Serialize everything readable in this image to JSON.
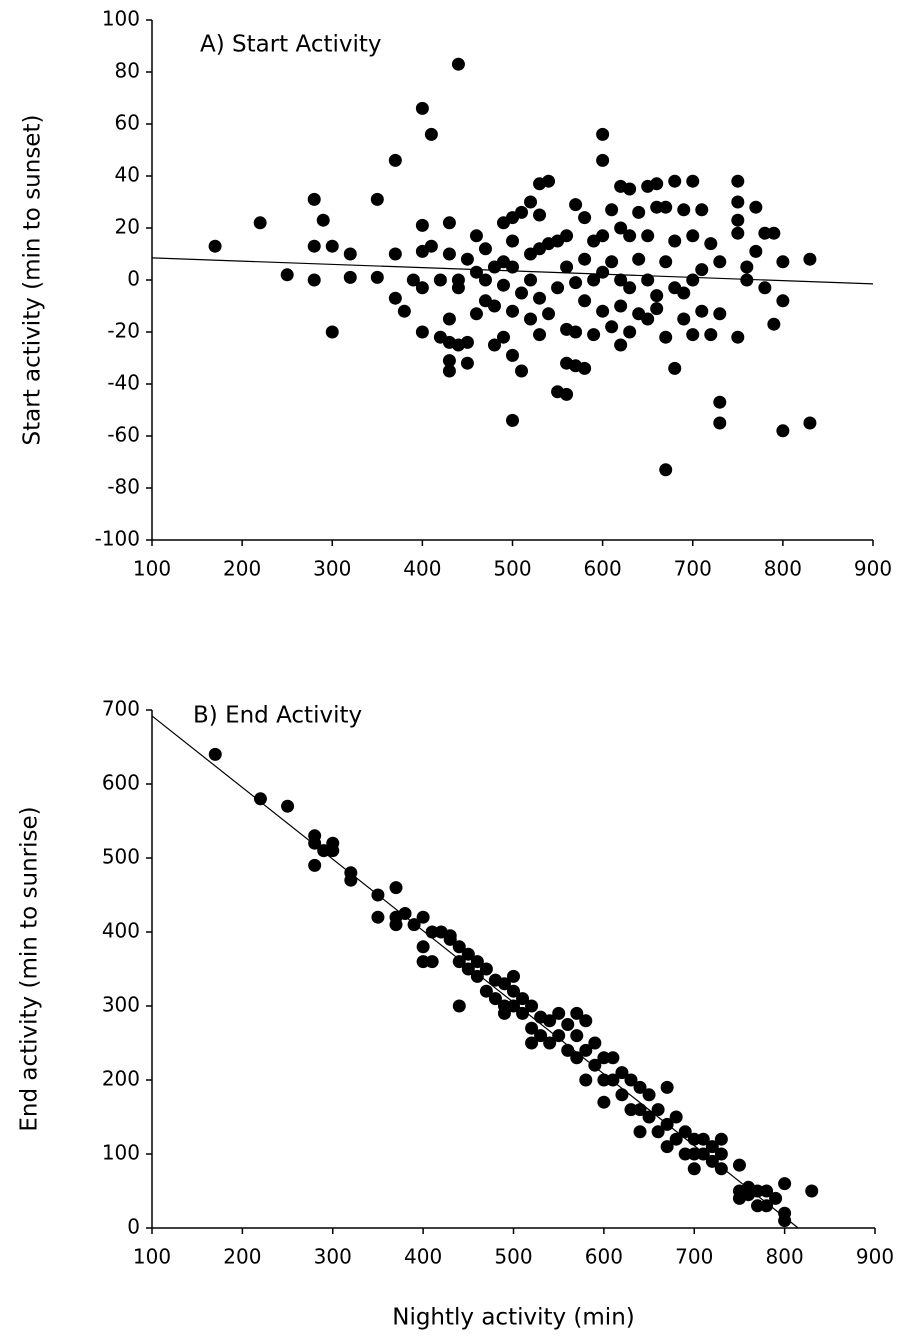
{
  "chart_data": [
    {
      "type": "scatter",
      "title": "A) Start Activity",
      "y_label": "Start activity (min to sunset)",
      "color": "#000000",
      "x": [
        170,
        220,
        250,
        280,
        280,
        280,
        290,
        300,
        300,
        320,
        320,
        350,
        350,
        370,
        370,
        370,
        380,
        390,
        400,
        400,
        400,
        400,
        400,
        410,
        410,
        420,
        420,
        430,
        430,
        430,
        430,
        430,
        430,
        440,
        440,
        440,
        440,
        450,
        450,
        450,
        460,
        460,
        460,
        470,
        470,
        470,
        480,
        480,
        480,
        490,
        490,
        490,
        490,
        500,
        500,
        500,
        500,
        500,
        500,
        510,
        510,
        510,
        520,
        520,
        520,
        520,
        530,
        530,
        530,
        530,
        530,
        540,
        540,
        540,
        550,
        550,
        550,
        560,
        560,
        560,
        560,
        560,
        570,
        570,
        570,
        570,
        580,
        580,
        580,
        580,
        590,
        590,
        590,
        600,
        600,
        600,
        600,
        600,
        610,
        610,
        610,
        620,
        620,
        620,
        620,
        620,
        630,
        630,
        630,
        630,
        640,
        640,
        640,
        650,
        650,
        650,
        650,
        660,
        660,
        660,
        660,
        670,
        670,
        670,
        670,
        680,
        680,
        680,
        680,
        690,
        690,
        690,
        700,
        700,
        700,
        700,
        710,
        710,
        710,
        720,
        720,
        730,
        730,
        730,
        730,
        750,
        750,
        750,
        750,
        750,
        760,
        760,
        770,
        770,
        780,
        780,
        790,
        790,
        800,
        800,
        800,
        830,
        830
      ],
      "values": [
        13,
        22,
        2,
        31,
        13,
        0,
        23,
        13,
        -20,
        10,
        1,
        31,
        1,
        46,
        10,
        -7,
        -12,
        0,
        66,
        21,
        11,
        -3,
        -20,
        56,
        13,
        0,
        -22,
        22,
        10,
        -15,
        -24,
        -31,
        -35,
        83,
        0,
        -3,
        -25,
        8,
        -24,
        -32,
        17,
        3,
        -13,
        12,
        0,
        -8,
        5,
        -10,
        -25,
        22,
        7,
        -2,
        -22,
        24,
        15,
        5,
        -12,
        -29,
        -54,
        26,
        -5,
        -35,
        30,
        10,
        0,
        -15,
        37,
        25,
        12,
        -7,
        -21,
        38,
        14,
        -13,
        15,
        -3,
        -43,
        17,
        5,
        -19,
        -32,
        -44,
        29,
        -1,
        -20,
        -33,
        24,
        8,
        -8,
        -34,
        15,
        0,
        -21,
        56,
        46,
        17,
        3,
        -12,
        27,
        7,
        -18,
        36,
        20,
        0,
        -10,
        -25,
        35,
        17,
        -3,
        -20,
        26,
        8,
        -13,
        36,
        17,
        0,
        -15,
        37,
        28,
        -6,
        -11,
        28,
        7,
        -22,
        -73,
        38,
        15,
        -3,
        -34,
        27,
        -5,
        -15,
        38,
        17,
        0,
        -21,
        27,
        4,
        -12,
        14,
        -21,
        7,
        -13,
        -47,
        -55,
        38,
        30,
        23,
        18,
        -22,
        5,
        0,
        28,
        11,
        18,
        -3,
        18,
        -17,
        7,
        -8,
        -58,
        8,
        -55
      ],
      "trendline": {
        "x": [
          100,
          900
        ],
        "values": [
          8.5,
          -1.5
        ]
      },
      "xlim": [
        100,
        900
      ],
      "ylim": [
        -100,
        100
      ],
      "xticks": [
        100,
        200,
        300,
        400,
        500,
        600,
        700,
        800,
        900
      ],
      "yticks": [
        -100,
        -80,
        -60,
        -40,
        -20,
        0,
        20,
        40,
        60,
        80,
        100
      ]
    },
    {
      "type": "scatter",
      "title": "B) End Activity",
      "y_label": "End activity (min to sunrise)",
      "x_label": "Nightly activity (min)",
      "color": "#000000",
      "x": [
        170,
        220,
        250,
        280,
        280,
        280,
        290,
        300,
        300,
        320,
        320,
        350,
        350,
        370,
        370,
        370,
        380,
        390,
        400,
        400,
        400,
        410,
        410,
        420,
        430,
        430,
        440,
        440,
        440,
        450,
        450,
        460,
        460,
        470,
        470,
        480,
        480,
        490,
        490,
        490,
        500,
        500,
        500,
        510,
        510,
        520,
        520,
        520,
        530,
        530,
        540,
        540,
        550,
        550,
        560,
        560,
        570,
        570,
        570,
        580,
        580,
        580,
        590,
        590,
        600,
        600,
        600,
        610,
        610,
        620,
        620,
        630,
        630,
        640,
        640,
        640,
        650,
        650,
        660,
        660,
        670,
        670,
        670,
        680,
        680,
        690,
        690,
        700,
        700,
        700,
        710,
        710,
        720,
        720,
        730,
        730,
        730,
        750,
        750,
        750,
        760,
        760,
        770,
        770,
        780,
        780,
        790,
        800,
        800,
        800,
        830
      ],
      "values": [
        640,
        580,
        570,
        530,
        520,
        490,
        510,
        520,
        510,
        480,
        470,
        450,
        420,
        460,
        420,
        410,
        425,
        410,
        420,
        380,
        360,
        400,
        360,
        400,
        390,
        395,
        380,
        360,
        300,
        370,
        350,
        360,
        340,
        350,
        320,
        335,
        310,
        330,
        300,
        290,
        340,
        320,
        300,
        310,
        290,
        300,
        270,
        250,
        285,
        260,
        280,
        250,
        290,
        260,
        275,
        240,
        290,
        260,
        230,
        280,
        240,
        200,
        250,
        220,
        230,
        200,
        170,
        230,
        200,
        210,
        180,
        200,
        160,
        190,
        160,
        130,
        180,
        150,
        160,
        130,
        190,
        140,
        110,
        150,
        120,
        130,
        100,
        120,
        100,
        80,
        120,
        100,
        110,
        90,
        120,
        100,
        80,
        85,
        50,
        40,
        55,
        45,
        50,
        30,
        50,
        30,
        40,
        60,
        20,
        10,
        50
      ],
      "trendline": {
        "x": [
          100,
          815
        ],
        "values": [
          692,
          0
        ]
      },
      "xlim": [
        100,
        900
      ],
      "ylim": [
        0,
        700
      ],
      "xticks": [
        100,
        200,
        300,
        400,
        500,
        600,
        700,
        800,
        900
      ],
      "yticks": [
        0,
        100,
        200,
        300,
        400,
        500,
        600,
        700
      ]
    }
  ]
}
